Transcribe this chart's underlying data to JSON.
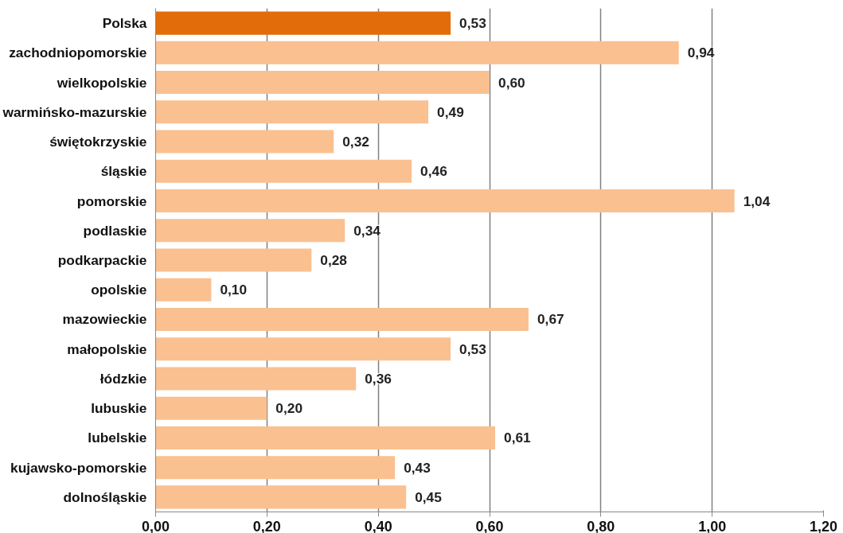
{
  "chart_data": {
    "type": "bar",
    "orientation": "horizontal",
    "categories": [
      "Polska",
      "zachodniopomorskie",
      "wielkopolskie",
      "warmińsko-mazurskie",
      "świętokrzyskie",
      "śląskie",
      "pomorskie",
      "podlaskie",
      "podkarpackie",
      "opolskie",
      "mazowieckie",
      "małopolskie",
      "łódzkie",
      "lubuskie",
      "lubelskie",
      "kujawsko-pomorskie",
      "dolnośląskie"
    ],
    "values": [
      0.53,
      0.94,
      0.6,
      0.49,
      0.32,
      0.46,
      1.04,
      0.34,
      0.28,
      0.1,
      0.67,
      0.53,
      0.36,
      0.2,
      0.61,
      0.43,
      0.45
    ],
    "colors": [
      "#e36c0a",
      "#fac090",
      "#fac090",
      "#fac090",
      "#fac090",
      "#fac090",
      "#fac090",
      "#fac090",
      "#fac090",
      "#fac090",
      "#fac090",
      "#fac090",
      "#fac090",
      "#fac090",
      "#fac090",
      "#fac090",
      "#fac090"
    ],
    "value_labels": [
      "0,53",
      "0,94",
      "0,60",
      "0,49",
      "0,32",
      "0,46",
      "1,04",
      "0,34",
      "0,28",
      "0,10",
      "0,67",
      "0,53",
      "0,36",
      "0,20",
      "0,61",
      "0,43",
      "0,45"
    ],
    "xlim": [
      0,
      1.2
    ],
    "xticks": [
      {
        "value": 0,
        "label": "0,00"
      },
      {
        "value": 0.2,
        "label": "0,20"
      },
      {
        "value": 0.4,
        "label": "0,40"
      },
      {
        "value": 0.6,
        "label": "0,60"
      },
      {
        "value": 0.8,
        "label": "0,80"
      },
      {
        "value": 1.0,
        "label": "1,00"
      },
      {
        "value": 1.2,
        "label": "1,20"
      }
    ],
    "grid": "x"
  }
}
